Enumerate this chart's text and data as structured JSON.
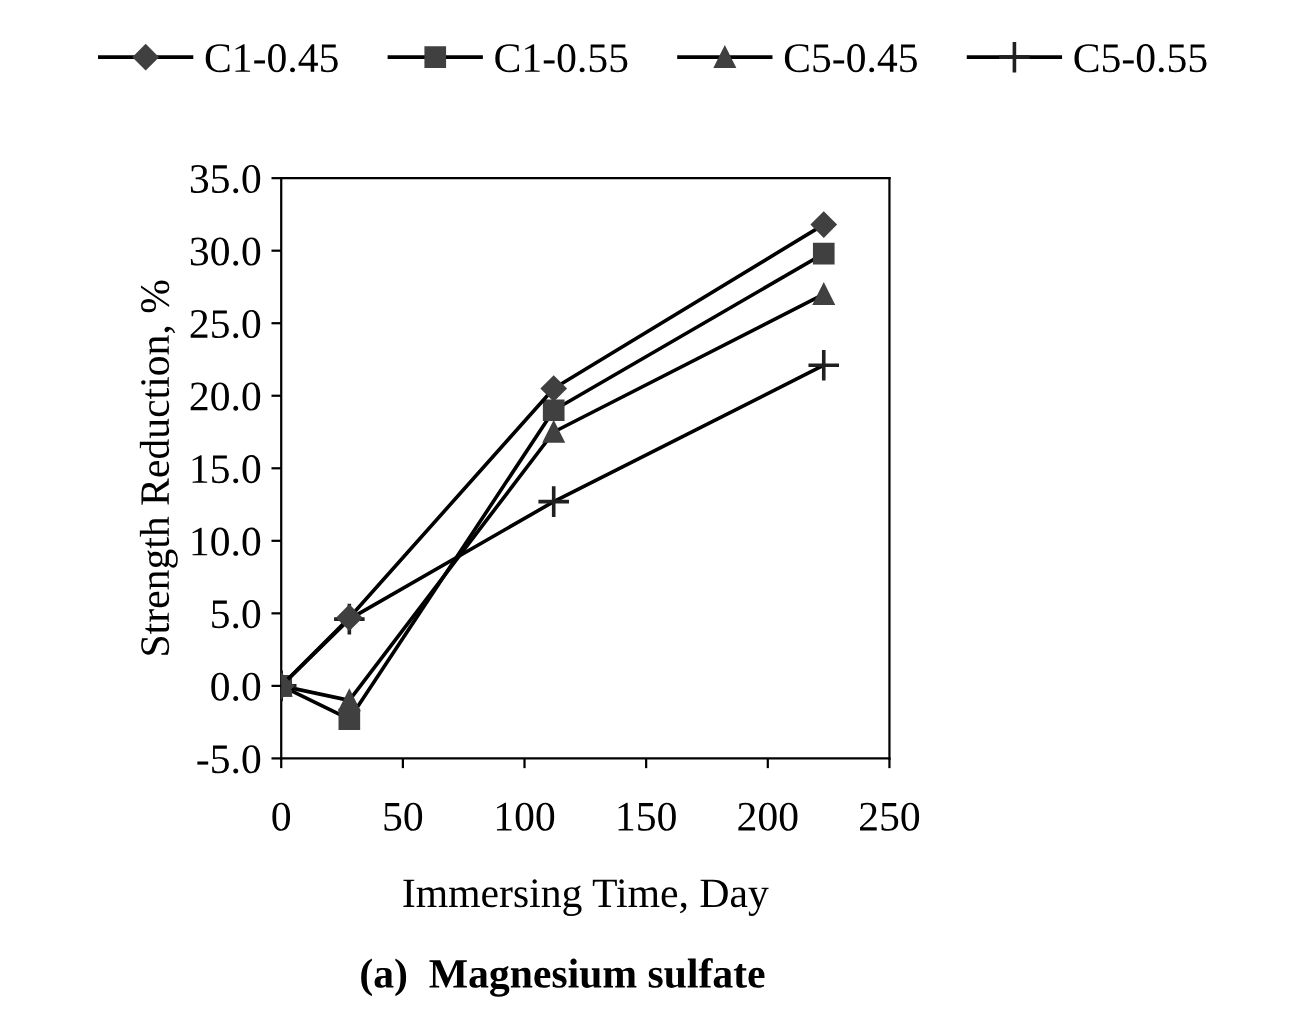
{
  "chart_data": {
    "type": "line",
    "title": "(a)  Magnesium sulfate",
    "xlabel": "Immersing Time, Day",
    "ylabel": "Strength Reduction, %",
    "x": [
      0,
      28,
      112,
      223
    ],
    "series": [
      {
        "name": "C1-0.45",
        "color": "#404040",
        "marker": "diamond",
        "values": [
          0.0,
          4.7,
          20.5,
          31.8
        ]
      },
      {
        "name": "C1-0.55",
        "color": "#404040",
        "marker": "square",
        "values": [
          0.0,
          -2.3,
          19.0,
          29.8
        ]
      },
      {
        "name": "C5-0.45",
        "color": "#404040",
        "marker": "triangle",
        "values": [
          0.0,
          -1.0,
          17.5,
          27.0
        ]
      },
      {
        "name": "C5-0.55",
        "color": "#202020",
        "marker": "cross",
        "values": [
          0.0,
          4.6,
          12.7,
          22.1
        ]
      }
    ],
    "xlim": [
      0,
      250
    ],
    "xticks": [
      0,
      50,
      100,
      150,
      200,
      250
    ],
    "ylim": [
      -5,
      35
    ],
    "yticks": [
      {
        "value": -5,
        "label": "-5.0"
      },
      {
        "value": 0,
        "label": "0.0"
      },
      {
        "value": 5,
        "label": "5.0"
      },
      {
        "value": 10,
        "label": "10.0"
      },
      {
        "value": 15,
        "label": "15.0"
      },
      {
        "value": 20,
        "label": "20.0"
      },
      {
        "value": 25,
        "label": "25.0"
      },
      {
        "value": 30,
        "label": "30.0"
      },
      {
        "value": 35,
        "label": "35.0"
      }
    ],
    "grid": false,
    "legend": "top",
    "line_style": "solid"
  }
}
